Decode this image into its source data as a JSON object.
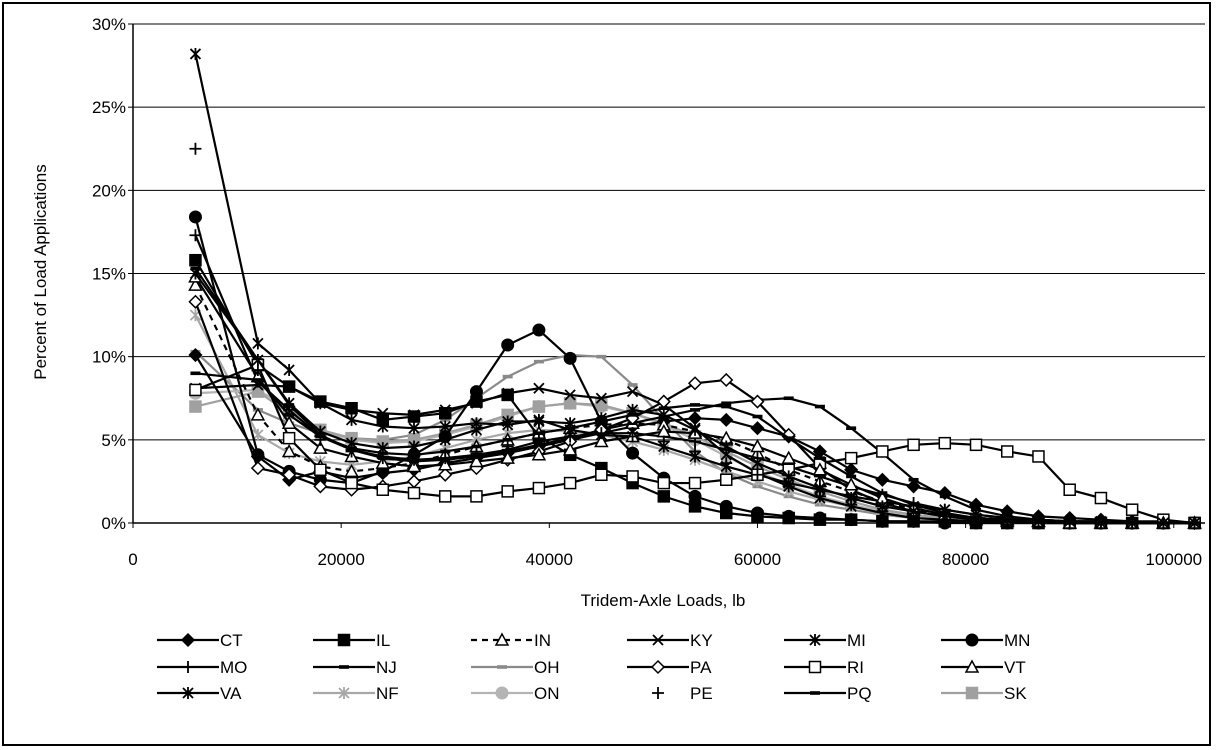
{
  "chart_data": {
    "type": "line",
    "title": "",
    "xlabel": "Tridem-Axle Loads, lb",
    "ylabel": "Percent of Load Applications",
    "xlim": [
      0,
      103000
    ],
    "ylim": [
      0,
      30
    ],
    "x_ticks": [
      {
        "v": 0,
        "label": "0"
      },
      {
        "v": 20000,
        "label": "20000"
      },
      {
        "v": 40000,
        "label": "40000"
      },
      {
        "v": 60000,
        "label": "60000"
      },
      {
        "v": 80000,
        "label": "80000"
      },
      {
        "v": 100000,
        "label": "100000"
      }
    ],
    "y_ticks": [
      {
        "v": 0,
        "label": "0%"
      },
      {
        "v": 5,
        "label": "5%"
      },
      {
        "v": 10,
        "label": "10%"
      },
      {
        "v": 15,
        "label": "15%"
      },
      {
        "v": 20,
        "label": "20%"
      },
      {
        "v": 25,
        "label": "25%"
      },
      {
        "v": 30,
        "label": "30%"
      }
    ],
    "grid": "horizontal",
    "legend_position": "bottom",
    "x": [
      6000,
      12000,
      15000,
      18000,
      21000,
      24000,
      27000,
      30000,
      33000,
      36000,
      39000,
      42000,
      45000,
      48000,
      51000,
      54000,
      57000,
      60000,
      63000,
      66000,
      69000,
      72000,
      75000,
      78000,
      81000,
      84000,
      87000,
      90000,
      93000,
      96000,
      99000,
      102000
    ],
    "series": [
      {
        "name": "CT",
        "color": "#000000",
        "dash": "",
        "marker": "diamond-filled",
        "values": [
          10.1,
          4.0,
          2.6,
          3.1,
          2.7,
          3.0,
          3.2,
          3.6,
          3.9,
          4.2,
          4.6,
          5.0,
          5.4,
          5.8,
          6.1,
          6.3,
          6.2,
          5.7,
          5.2,
          4.3,
          3.2,
          2.6,
          2.2,
          1.8,
          1.1,
          0.7,
          0.4,
          0.3,
          0.2,
          0.1,
          0.1,
          0.0
        ]
      },
      {
        "name": "IL",
        "color": "#000000",
        "dash": "",
        "marker": "square-filled",
        "values": [
          15.8,
          9.5,
          8.2,
          7.3,
          6.9,
          6.2,
          6.4,
          6.6,
          7.3,
          7.7,
          5.2,
          4.1,
          3.3,
          2.4,
          1.6,
          1.0,
          0.6,
          0.4,
          0.3,
          0.2,
          0.2,
          0.1,
          0.1,
          0.1,
          0.0,
          0.0,
          0.0,
          0.0,
          0.0,
          0.0,
          0.0,
          0.0
        ]
      },
      {
        "name": "IN",
        "color": "#000000",
        "dash": "6,5",
        "marker": "triangle-open",
        "values": [
          14.3,
          6.5,
          4.3,
          3.4,
          3.1,
          3.3,
          3.6,
          4.1,
          4.6,
          5.0,
          5.4,
          5.7,
          5.9,
          6.0,
          5.9,
          5.5,
          5.0,
          4.2,
          3.2,
          2.5,
          1.9,
          1.3,
          0.8,
          0.4,
          0.2,
          0.1,
          0.1,
          0.0,
          0.0,
          0.0,
          0.0,
          0.0
        ]
      },
      {
        "name": "KY",
        "color": "#000000",
        "dash": "",
        "marker": "x",
        "values": [
          8.1,
          8.3,
          8.2,
          7.2,
          6.8,
          6.6,
          6.5,
          6.8,
          7.2,
          7.8,
          8.1,
          7.7,
          7.5,
          7.9,
          7.1,
          5.7,
          4.1,
          3.0,
          2.2,
          1.5,
          1.0,
          0.6,
          0.3,
          0.2,
          0.1,
          0.1,
          0.0,
          0.0,
          0.0,
          0.0,
          0.0,
          0.0
        ]
      },
      {
        "name": "MI",
        "color": "#000000",
        "dash": "",
        "marker": "star",
        "values": [
          28.2,
          10.8,
          9.2,
          7.2,
          6.2,
          5.8,
          5.7,
          5.8,
          6.0,
          5.9,
          6.2,
          5.6,
          5.3,
          5.2,
          4.6,
          4.0,
          3.4,
          2.9,
          2.4,
          2.0,
          1.6,
          1.3,
          1.0,
          0.8,
          0.5,
          0.3,
          0.2,
          0.1,
          0.1,
          0.0,
          0.0,
          0.0
        ]
      },
      {
        "name": "MN",
        "color": "#000000",
        "dash": "",
        "marker": "circle-filled",
        "values": [
          18.4,
          4.1,
          3.1,
          2.6,
          2.4,
          3.1,
          4.1,
          5.2,
          7.9,
          10.7,
          11.6,
          9.9,
          6.1,
          4.2,
          2.7,
          1.6,
          1.0,
          0.6,
          0.4,
          0.3,
          0.2,
          0.1,
          0.1,
          0.0,
          0.0,
          0.0,
          0.0,
          0.0,
          0.0,
          0.0,
          0.0,
          0.0
        ]
      },
      {
        "name": "MO",
        "color": "#000000",
        "dash": "",
        "marker": "plus",
        "values": [
          17.3,
          8.5,
          6.8,
          5.2,
          4.4,
          4.0,
          3.8,
          3.9,
          4.1,
          4.4,
          4.9,
          5.2,
          5.4,
          5.4,
          5.2,
          4.9,
          4.4,
          3.9,
          3.4,
          2.8,
          2.2,
          1.7,
          1.2,
          0.8,
          0.5,
          0.3,
          0.2,
          0.1,
          0.1,
          0.0,
          0.0,
          0.0
        ]
      },
      {
        "name": "NJ",
        "color": "#000000",
        "dash": "",
        "marker": "dash",
        "values": [
          15.3,
          9.8,
          7.1,
          5.3,
          4.4,
          3.9,
          3.7,
          3.8,
          4.0,
          4.3,
          4.7,
          5.1,
          5.6,
          6.0,
          6.4,
          6.8,
          7.2,
          7.4,
          7.5,
          7.0,
          5.7,
          4.2,
          2.6,
          1.6,
          0.8,
          0.4,
          0.2,
          0.1,
          0.1,
          0.0,
          0.0,
          0.0
        ]
      },
      {
        "name": "OH",
        "color": "#8a8a8a",
        "dash": "",
        "marker": "dash",
        "values": [
          10.3,
          6.8,
          6.0,
          5.4,
          5.1,
          5.0,
          5.3,
          6.2,
          7.5,
          8.8,
          9.7,
          10.1,
          10.0,
          8.3,
          6.2,
          4.3,
          3.0,
          2.2,
          1.6,
          1.1,
          0.8,
          0.5,
          0.3,
          0.2,
          0.1,
          0.1,
          0.0,
          0.0,
          0.0,
          0.0,
          0.0,
          0.0
        ]
      },
      {
        "name": "PA",
        "color": "#000000",
        "dash": "",
        "marker": "diamond-open",
        "values": [
          13.3,
          3.3,
          2.9,
          2.2,
          2.0,
          2.2,
          2.5,
          2.9,
          3.3,
          3.8,
          4.3,
          4.9,
          5.6,
          6.3,
          7.3,
          8.4,
          8.6,
          7.3,
          5.3,
          3.3,
          2.0,
          1.2,
          0.7,
          0.4,
          0.2,
          0.1,
          0.1,
          0.0,
          0.0,
          0.0,
          0.0,
          0.0
        ]
      },
      {
        "name": "RI",
        "color": "#000000",
        "dash": "",
        "marker": "square-open",
        "values": [
          8.0,
          9.5,
          5.1,
          3.2,
          2.4,
          2.0,
          1.8,
          1.6,
          1.6,
          1.9,
          2.1,
          2.4,
          2.9,
          2.8,
          2.4,
          2.4,
          2.6,
          2.9,
          3.2,
          3.6,
          3.9,
          4.3,
          4.7,
          4.8,
          4.7,
          4.3,
          4.0,
          2.0,
          1.5,
          0.8,
          0.2,
          0.0
        ]
      },
      {
        "name": "VT",
        "color": "#000000",
        "dash": "",
        "marker": "triangle-open",
        "values": [
          14.8,
          8.8,
          6.0,
          4.5,
          4.0,
          3.6,
          3.4,
          3.5,
          3.7,
          3.9,
          4.1,
          4.4,
          4.9,
          5.2,
          5.5,
          5.4,
          5.1,
          4.6,
          3.9,
          3.2,
          2.3,
          1.5,
          0.9,
          0.5,
          0.3,
          0.2,
          0.1,
          0.0,
          0.0,
          0.0,
          0.0,
          0.0
        ]
      },
      {
        "name": "VA",
        "color": "#000000",
        "dash": "",
        "marker": "star",
        "values": [
          15.0,
          9.8,
          7.2,
          5.5,
          4.8,
          4.5,
          4.6,
          5.0,
          5.6,
          6.1,
          6.1,
          6.0,
          6.3,
          6.8,
          6.5,
          5.6,
          4.6,
          3.6,
          2.8,
          2.1,
          1.5,
          1.0,
          0.7,
          0.4,
          0.3,
          0.2,
          0.1,
          0.1,
          0.0,
          0.0,
          0.0,
          0.0
        ]
      },
      {
        "name": "NF",
        "color": "#a8a8a8",
        "dash": "",
        "marker": "star",
        "values": [
          12.5,
          5.3,
          4.2,
          3.7,
          3.5,
          3.7,
          4.0,
          4.5,
          5.0,
          5.4,
          5.6,
          5.5,
          5.3,
          4.9,
          4.4,
          3.8,
          3.1,
          2.5,
          1.9,
          1.4,
          1.0,
          0.7,
          0.4,
          0.3,
          0.2,
          0.1,
          0.1,
          0.0,
          0.0,
          0.0,
          0.0,
          0.0
        ]
      },
      {
        "name": "ON",
        "color": "#b4b4b4",
        "dash": "",
        "marker": "circle-filled",
        "values": [
          7.8,
          8.0,
          6.9,
          5.6,
          5.0,
          4.8,
          4.9,
          5.3,
          5.8,
          6.4,
          7.0,
          7.2,
          7.0,
          6.6,
          5.9,
          5.0,
          4.0,
          3.1,
          2.3,
          1.6,
          1.1,
          0.7,
          0.4,
          0.3,
          0.2,
          0.1,
          0.1,
          0.0,
          0.0,
          0.0,
          0.0,
          0.0
        ]
      },
      {
        "name": "PE",
        "color": "#000000",
        "dash": "",
        "marker": "plus-only",
        "values": [
          22.5,
          9.2,
          7.0,
          5.0,
          4.3,
          3.9,
          3.8,
          3.9,
          4.2,
          4.6,
          5.0,
          5.2,
          5.4,
          5.2,
          4.9,
          4.3,
          3.6,
          2.9,
          2.2,
          1.6,
          1.1,
          0.7,
          0.4,
          0.2,
          0.1,
          0.1,
          0.0,
          0.0,
          0.0,
          0.0,
          0.0,
          0.0
        ]
      },
      {
        "name": "PQ",
        "color": "#000000",
        "dash": "",
        "marker": "dash",
        "values": [
          9.0,
          8.6,
          6.5,
          5.2,
          4.5,
          4.2,
          4.1,
          4.3,
          4.6,
          5.0,
          5.4,
          5.7,
          6.1,
          6.5,
          6.9,
          7.1,
          7.0,
          6.4,
          5.1,
          3.9,
          2.8,
          1.8,
          1.1,
          0.6,
          0.3,
          0.2,
          0.1,
          0.0,
          0.0,
          0.0,
          0.0,
          0.0
        ]
      },
      {
        "name": "SK",
        "color": "#a0a0a0",
        "dash": "",
        "marker": "square-filled",
        "values": [
          7.0,
          7.9,
          6.6,
          5.6,
          5.1,
          4.9,
          5.0,
          5.4,
          5.9,
          6.5,
          7.0,
          7.2,
          7.1,
          6.6,
          6.0,
          5.2,
          4.3,
          3.4,
          2.6,
          1.9,
          1.3,
          0.8,
          0.5,
          0.3,
          0.2,
          0.1,
          0.0,
          0.0,
          0.0,
          0.0,
          0.0,
          0.0
        ]
      }
    ]
  }
}
